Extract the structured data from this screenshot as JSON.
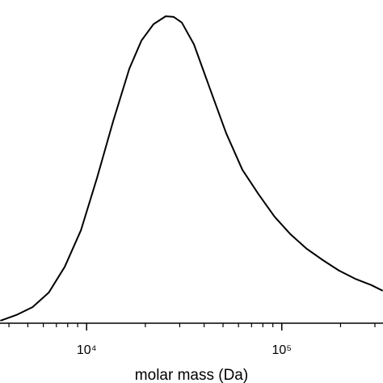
{
  "chart_data": {
    "type": "line",
    "x_label": "molar mass (Da)",
    "x_log_scale": true,
    "xlim": [
      3600,
      330000
    ],
    "ylim": [
      0,
      1
    ],
    "xticks": [
      {
        "value": 10000,
        "label": "10⁴"
      },
      {
        "value": 100000,
        "label": "10⁵"
      }
    ],
    "xminorticks": [
      4000,
      5000,
      6000,
      7000,
      8000,
      9000,
      20000,
      30000,
      40000,
      50000,
      60000,
      70000,
      80000,
      90000,
      200000,
      300000
    ],
    "series": [
      {
        "color": "#000000",
        "x": [
          3614,
          4365,
          5284,
          6397,
          7727,
          9354,
          11320,
          13680,
          16560,
          19100,
          22030,
          25410,
          27930,
          30750,
          35470,
          42860,
          51880,
          62800,
          75860,
          91830,
          110900,
          134300,
          162500,
          196400,
          237700,
          287600,
          328900
        ],
        "values": [
          0.008,
          0.026,
          0.051,
          0.097,
          0.179,
          0.295,
          0.462,
          0.641,
          0.808,
          0.897,
          0.949,
          0.974,
          0.972,
          0.954,
          0.885,
          0.744,
          0.603,
          0.487,
          0.41,
          0.338,
          0.282,
          0.236,
          0.2,
          0.167,
          0.141,
          0.121,
          0.103
        ]
      }
    ]
  }
}
